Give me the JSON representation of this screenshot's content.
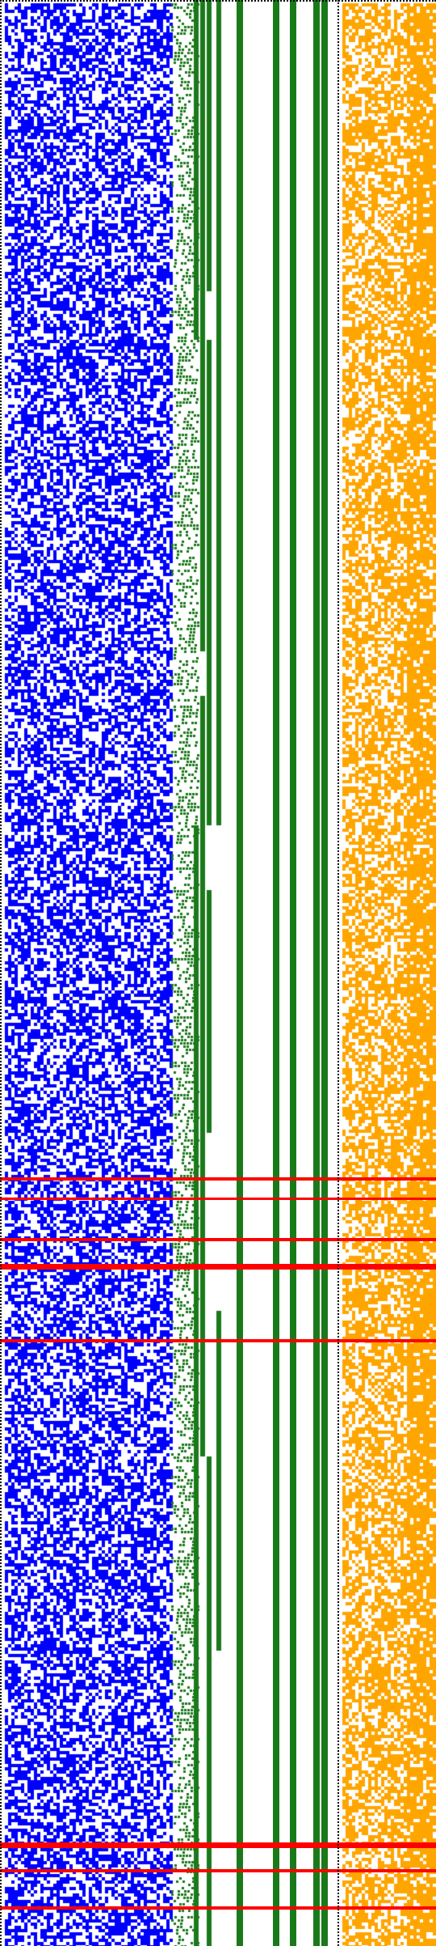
{
  "colors": {
    "background": "#ffffff",
    "left_pattern": "#0000ff",
    "staircase": "#1a7a1a",
    "right_pattern": "#ffa500",
    "highlight_lines": "#ff0000",
    "dotted_border": "#000000"
  },
  "panels": [
    {
      "name": "left-pattern",
      "color": "blue",
      "density": 0.55
    },
    {
      "name": "staircase",
      "color": "green"
    },
    {
      "name": "vertical-bars",
      "color": "green",
      "count": 5
    },
    {
      "name": "right-pattern",
      "color": "orange",
      "density": 0.6
    }
  ],
  "highlighted_rows": 8
}
